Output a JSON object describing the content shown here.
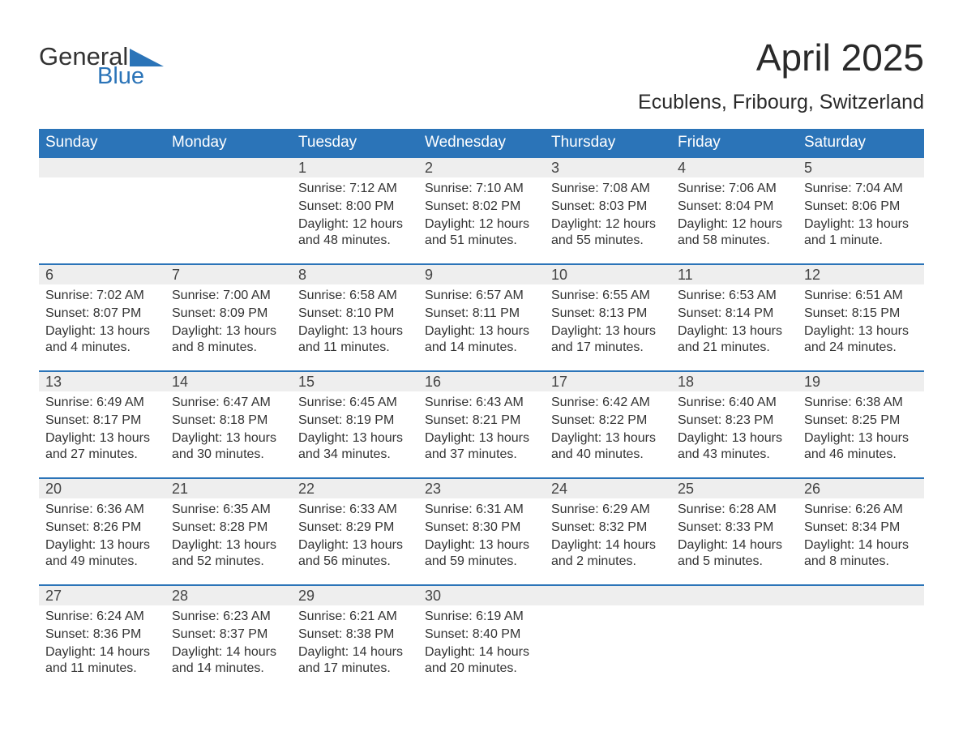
{
  "logo": {
    "word1": "General",
    "word2": "Blue"
  },
  "title": "April 2025",
  "location": "Ecublens, Fribourg, Switzerland",
  "colors": {
    "brand": "#2b74b8",
    "headerBg": "#2b74b8",
    "headerText": "#ffffff",
    "dayStrip": "#eeeeee",
    "text": "#333333",
    "background": "#ffffff"
  },
  "dayHeaders": [
    "Sunday",
    "Monday",
    "Tuesday",
    "Wednesday",
    "Thursday",
    "Friday",
    "Saturday"
  ],
  "labels": {
    "sunrise": "Sunrise: ",
    "sunset": "Sunset: ",
    "daylight": "Daylight: "
  },
  "weeks": [
    [
      null,
      null,
      {
        "n": "1",
        "sr": "7:12 AM",
        "ss": "8:00 PM",
        "dl": "12 hours and 48 minutes."
      },
      {
        "n": "2",
        "sr": "7:10 AM",
        "ss": "8:02 PM",
        "dl": "12 hours and 51 minutes."
      },
      {
        "n": "3",
        "sr": "7:08 AM",
        "ss": "8:03 PM",
        "dl": "12 hours and 55 minutes."
      },
      {
        "n": "4",
        "sr": "7:06 AM",
        "ss": "8:04 PM",
        "dl": "12 hours and 58 minutes."
      },
      {
        "n": "5",
        "sr": "7:04 AM",
        "ss": "8:06 PM",
        "dl": "13 hours and 1 minute."
      }
    ],
    [
      {
        "n": "6",
        "sr": "7:02 AM",
        "ss": "8:07 PM",
        "dl": "13 hours and 4 minutes."
      },
      {
        "n": "7",
        "sr": "7:00 AM",
        "ss": "8:09 PM",
        "dl": "13 hours and 8 minutes."
      },
      {
        "n": "8",
        "sr": "6:58 AM",
        "ss": "8:10 PM",
        "dl": "13 hours and 11 minutes."
      },
      {
        "n": "9",
        "sr": "6:57 AM",
        "ss": "8:11 PM",
        "dl": "13 hours and 14 minutes."
      },
      {
        "n": "10",
        "sr": "6:55 AM",
        "ss": "8:13 PM",
        "dl": "13 hours and 17 minutes."
      },
      {
        "n": "11",
        "sr": "6:53 AM",
        "ss": "8:14 PM",
        "dl": "13 hours and 21 minutes."
      },
      {
        "n": "12",
        "sr": "6:51 AM",
        "ss": "8:15 PM",
        "dl": "13 hours and 24 minutes."
      }
    ],
    [
      {
        "n": "13",
        "sr": "6:49 AM",
        "ss": "8:17 PM",
        "dl": "13 hours and 27 minutes."
      },
      {
        "n": "14",
        "sr": "6:47 AM",
        "ss": "8:18 PM",
        "dl": "13 hours and 30 minutes."
      },
      {
        "n": "15",
        "sr": "6:45 AM",
        "ss": "8:19 PM",
        "dl": "13 hours and 34 minutes."
      },
      {
        "n": "16",
        "sr": "6:43 AM",
        "ss": "8:21 PM",
        "dl": "13 hours and 37 minutes."
      },
      {
        "n": "17",
        "sr": "6:42 AM",
        "ss": "8:22 PM",
        "dl": "13 hours and 40 minutes."
      },
      {
        "n": "18",
        "sr": "6:40 AM",
        "ss": "8:23 PM",
        "dl": "13 hours and 43 minutes."
      },
      {
        "n": "19",
        "sr": "6:38 AM",
        "ss": "8:25 PM",
        "dl": "13 hours and 46 minutes."
      }
    ],
    [
      {
        "n": "20",
        "sr": "6:36 AM",
        "ss": "8:26 PM",
        "dl": "13 hours and 49 minutes."
      },
      {
        "n": "21",
        "sr": "6:35 AM",
        "ss": "8:28 PM",
        "dl": "13 hours and 52 minutes."
      },
      {
        "n": "22",
        "sr": "6:33 AM",
        "ss": "8:29 PM",
        "dl": "13 hours and 56 minutes."
      },
      {
        "n": "23",
        "sr": "6:31 AM",
        "ss": "8:30 PM",
        "dl": "13 hours and 59 minutes."
      },
      {
        "n": "24",
        "sr": "6:29 AM",
        "ss": "8:32 PM",
        "dl": "14 hours and 2 minutes."
      },
      {
        "n": "25",
        "sr": "6:28 AM",
        "ss": "8:33 PM",
        "dl": "14 hours and 5 minutes."
      },
      {
        "n": "26",
        "sr": "6:26 AM",
        "ss": "8:34 PM",
        "dl": "14 hours and 8 minutes."
      }
    ],
    [
      {
        "n": "27",
        "sr": "6:24 AM",
        "ss": "8:36 PM",
        "dl": "14 hours and 11 minutes."
      },
      {
        "n": "28",
        "sr": "6:23 AM",
        "ss": "8:37 PM",
        "dl": "14 hours and 14 minutes."
      },
      {
        "n": "29",
        "sr": "6:21 AM",
        "ss": "8:38 PM",
        "dl": "14 hours and 17 minutes."
      },
      {
        "n": "30",
        "sr": "6:19 AM",
        "ss": "8:40 PM",
        "dl": "14 hours and 20 minutes."
      },
      null,
      null,
      null
    ]
  ]
}
